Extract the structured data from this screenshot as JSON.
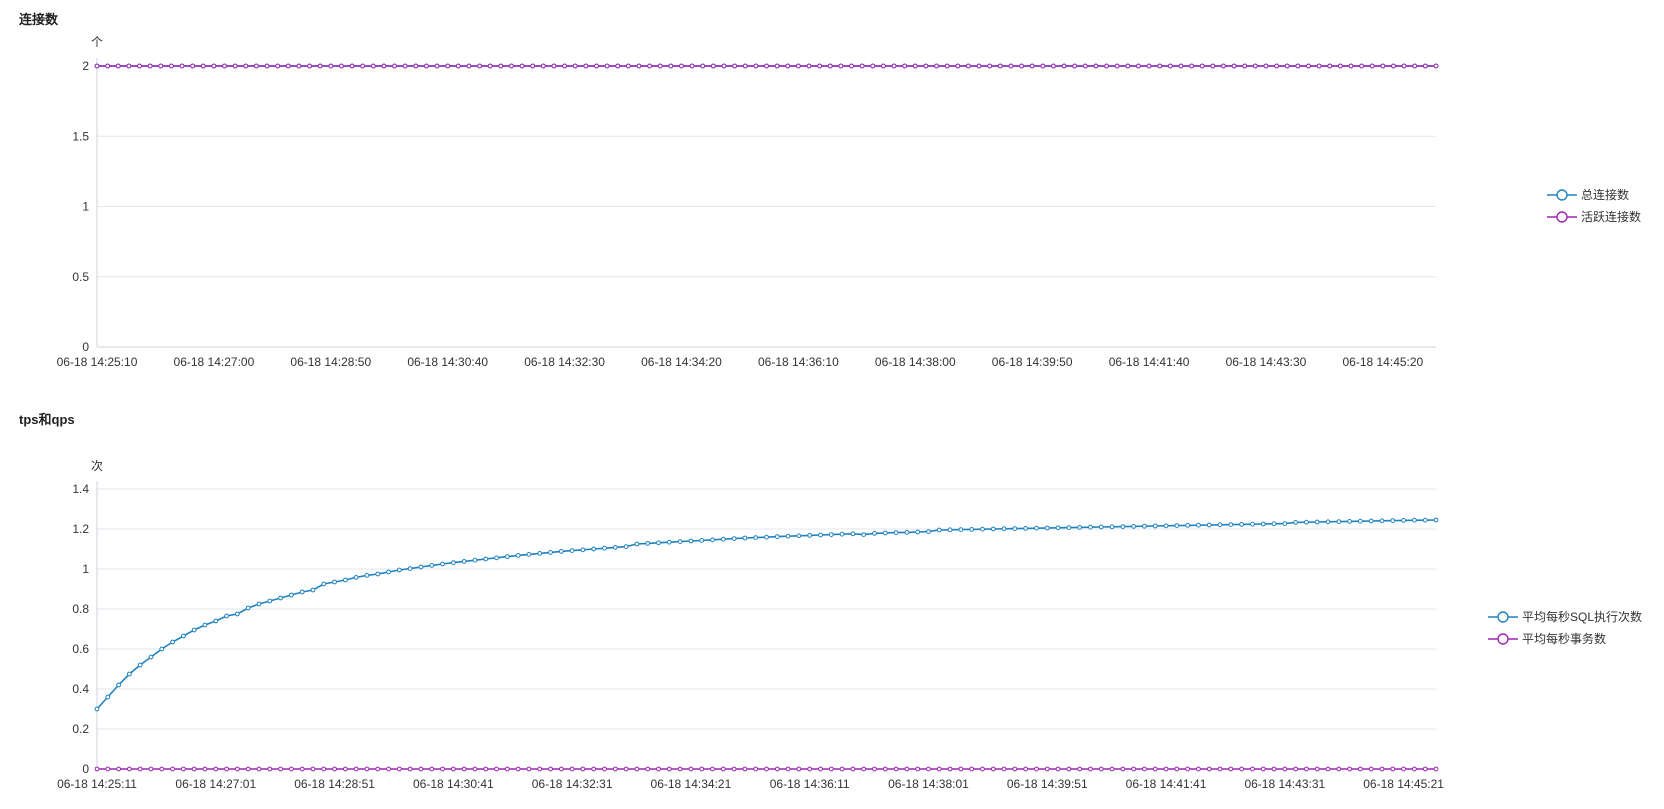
{
  "charts": [
    {
      "id": "connections",
      "title": "连接数",
      "chart_data": {
        "type": "line",
        "title": "连接数",
        "y_unit": "个",
        "ylim": [
          0,
          2
        ],
        "y_ticks": [
          "0",
          "0.5",
          "1",
          "1.5",
          "2"
        ],
        "x_tick_labels": [
          "06-18 14:25:10",
          "06-18 14:27:00",
          "06-18 14:28:50",
          "06-18 14:30:40",
          "06-18 14:32:30",
          "06-18 14:34:20",
          "06-18 14:36:10",
          "06-18 14:38:00",
          "06-18 14:39:50",
          "06-18 14:41:40",
          "06-18 14:43:30",
          "06-18 14:45:20"
        ],
        "grid": true,
        "legend_placement": "right",
        "series": [
          {
            "name": "总连接数",
            "color": "#1f82c0",
            "values": [
              2,
              2,
              2,
              2,
              2,
              2,
              2,
              2,
              2,
              2,
              2,
              2,
              2,
              2,
              2,
              2,
              2,
              2,
              2,
              2,
              2,
              2,
              2,
              2,
              2,
              2,
              2,
              2,
              2,
              2,
              2,
              2,
              2,
              2,
              2,
              2,
              2,
              2,
              2,
              2,
              2,
              2,
              2,
              2,
              2,
              2,
              2,
              2,
              2,
              2,
              2,
              2,
              2,
              2,
              2,
              2,
              2,
              2,
              2,
              2,
              2,
              2,
              2,
              2,
              2,
              2,
              2,
              2,
              2,
              2,
              2,
              2,
              2,
              2,
              2,
              2,
              2,
              2,
              2,
              2,
              2,
              2,
              2,
              2,
              2,
              2,
              2,
              2,
              2,
              2,
              2,
              2,
              2,
              2,
              2,
              2,
              2,
              2,
              2,
              2,
              2,
              2,
              2,
              2,
              2,
              2,
              2,
              2,
              2,
              2,
              2,
              2,
              2,
              2,
              2,
              2,
              2,
              2,
              2,
              2,
              2,
              2,
              2,
              2,
              2,
              2,
              2
            ]
          },
          {
            "name": "活跃连接数",
            "color": "#9c27b0",
            "values": [
              2,
              2,
              2,
              2,
              2,
              2,
              2,
              2,
              2,
              2,
              2,
              2,
              2,
              2,
              2,
              2,
              2,
              2,
              2,
              2,
              2,
              2,
              2,
              2,
              2,
              2,
              2,
              2,
              2,
              2,
              2,
              2,
              2,
              2,
              2,
              2,
              2,
              2,
              2,
              2,
              2,
              2,
              2,
              2,
              2,
              2,
              2,
              2,
              2,
              2,
              2,
              2,
              2,
              2,
              2,
              2,
              2,
              2,
              2,
              2,
              2,
              2,
              2,
              2,
              2,
              2,
              2,
              2,
              2,
              2,
              2,
              2,
              2,
              2,
              2,
              2,
              2,
              2,
              2,
              2,
              2,
              2,
              2,
              2,
              2,
              2,
              2,
              2,
              2,
              2,
              2,
              2,
              2,
              2,
              2,
              2,
              2,
              2,
              2,
              2,
              2,
              2,
              2,
              2,
              2,
              2,
              2,
              2,
              2,
              2,
              2,
              2,
              2,
              2,
              2,
              2,
              2,
              2,
              2,
              2,
              2,
              2,
              2,
              2,
              2,
              2,
              2
            ]
          }
        ]
      }
    },
    {
      "id": "tps",
      "title": "tps和qps",
      "chart_data": {
        "type": "line",
        "title": "tps和qps",
        "y_unit": "次",
        "ylim": [
          0,
          1.4
        ],
        "y_ticks": [
          "0",
          "0.2",
          "0.4",
          "0.6",
          "0.8",
          "1",
          "1.2",
          "1.4"
        ],
        "x_tick_labels": [
          "06-18 14:25:11",
          "06-18 14:27:01",
          "06-18 14:28:51",
          "06-18 14:30:41",
          "06-18 14:32:31",
          "06-18 14:34:21",
          "06-18 14:36:11",
          "06-18 14:38:01",
          "06-18 14:39:51",
          "06-18 14:41:41",
          "06-18 14:43:31",
          "06-18 14:45:21"
        ],
        "grid": true,
        "legend_placement": "right",
        "series": [
          {
            "name": "平均每秒SQL执行次数",
            "color": "#1f82c0",
            "values": [
              0.3,
              0.36,
              0.42,
              0.475,
              0.52,
              0.56,
              0.6,
              0.635,
              0.665,
              0.695,
              0.72,
              0.74,
              0.765,
              0.775,
              0.805,
              0.825,
              0.84,
              0.855,
              0.87,
              0.885,
              0.895,
              0.925,
              0.935,
              0.945,
              0.958,
              0.968,
              0.975,
              0.985,
              0.995,
              1.002,
              1.01,
              1.018,
              1.025,
              1.032,
              1.038,
              1.044,
              1.05,
              1.056,
              1.062,
              1.068,
              1.073,
              1.078,
              1.083,
              1.088,
              1.092,
              1.096,
              1.1,
              1.104,
              1.108,
              1.112,
              1.125,
              1.128,
              1.131,
              1.134,
              1.137,
              1.14,
              1.143,
              1.146,
              1.149,
              1.152,
              1.155,
              1.157,
              1.159,
              1.162,
              1.164,
              1.166,
              1.168,
              1.17,
              1.172,
              1.174,
              1.176,
              1.172,
              1.178,
              1.18,
              1.182,
              1.183,
              1.185,
              1.187,
              1.195,
              1.196,
              1.197,
              1.198,
              1.199,
              1.2,
              1.201,
              1.202,
              1.203,
              1.204,
              1.205,
              1.206,
              1.207,
              1.208,
              1.209,
              1.21,
              1.211,
              1.212,
              1.213,
              1.214,
              1.215,
              1.216,
              1.217,
              1.218,
              1.219,
              1.22,
              1.221,
              1.222,
              1.223,
              1.224,
              1.225,
              1.226,
              1.227,
              1.233,
              1.234,
              1.235,
              1.236,
              1.237,
              1.238,
              1.239,
              1.24,
              1.241,
              1.242,
              1.243,
              1.244,
              1.244,
              1.245
            ]
          },
          {
            "name": "平均每秒事务数",
            "color": "#9c27b0",
            "values": [
              0,
              0,
              0,
              0,
              0,
              0,
              0,
              0,
              0,
              0,
              0,
              0,
              0,
              0,
              0,
              0,
              0,
              0,
              0,
              0,
              0,
              0,
              0,
              0,
              0,
              0,
              0,
              0,
              0,
              0,
              0,
              0,
              0,
              0,
              0,
              0,
              0,
              0,
              0,
              0,
              0,
              0,
              0,
              0,
              0,
              0,
              0,
              0,
              0,
              0,
              0,
              0,
              0,
              0,
              0,
              0,
              0,
              0,
              0,
              0,
              0,
              0,
              0,
              0,
              0,
              0,
              0,
              0,
              0,
              0,
              0,
              0,
              0,
              0,
              0,
              0,
              0,
              0,
              0,
              0,
              0,
              0,
              0,
              0,
              0,
              0,
              0,
              0,
              0,
              0,
              0,
              0,
              0,
              0,
              0,
              0,
              0,
              0,
              0,
              0,
              0,
              0,
              0,
              0,
              0,
              0,
              0,
              0,
              0,
              0,
              0,
              0,
              0,
              0,
              0,
              0,
              0,
              0,
              0,
              0,
              0,
              0,
              0,
              0,
              0
            ]
          }
        ]
      }
    }
  ]
}
